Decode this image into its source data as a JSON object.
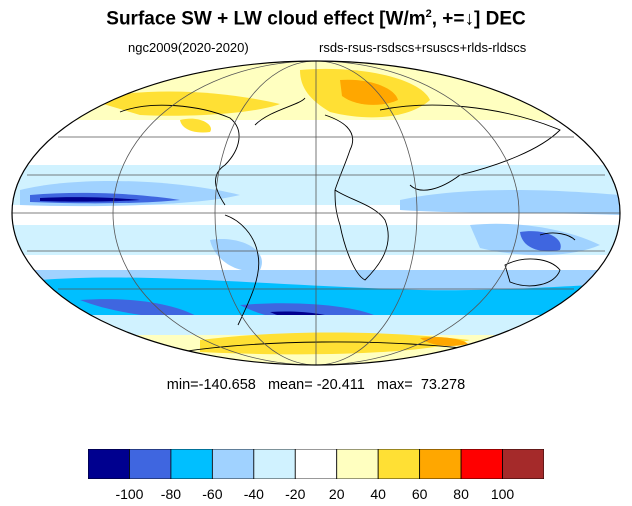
{
  "title": {
    "main": "Surface SW + LW cloud effect [W/m",
    "sup": "2",
    "suffix": ", +=↓]  DEC"
  },
  "subtitle": {
    "left": "ngc2009(2020-2020)",
    "right": "rsds-rsus-rsdscs+rsuscs+rlds-rldscs"
  },
  "stats": {
    "text": "min=-140.658   mean= -20.411   max=  73.278",
    "min": -140.658,
    "mean": -20.411,
    "max": 73.278
  },
  "colorbar": {
    "colors": [
      "#00008f",
      "#3f66e0",
      "#00bfff",
      "#a0d2ff",
      "#d0f2ff",
      "#ffffff",
      "#ffffc0",
      "#ffe034",
      "#ffa700",
      "#ff0000",
      "#a52a2a"
    ],
    "labels": [
      "-100",
      "-80",
      "-60",
      "-40",
      "-20",
      "20",
      "40",
      "60",
      "80",
      "100"
    ]
  },
  "map": {
    "projection": "Mollweide",
    "grid": true
  }
}
